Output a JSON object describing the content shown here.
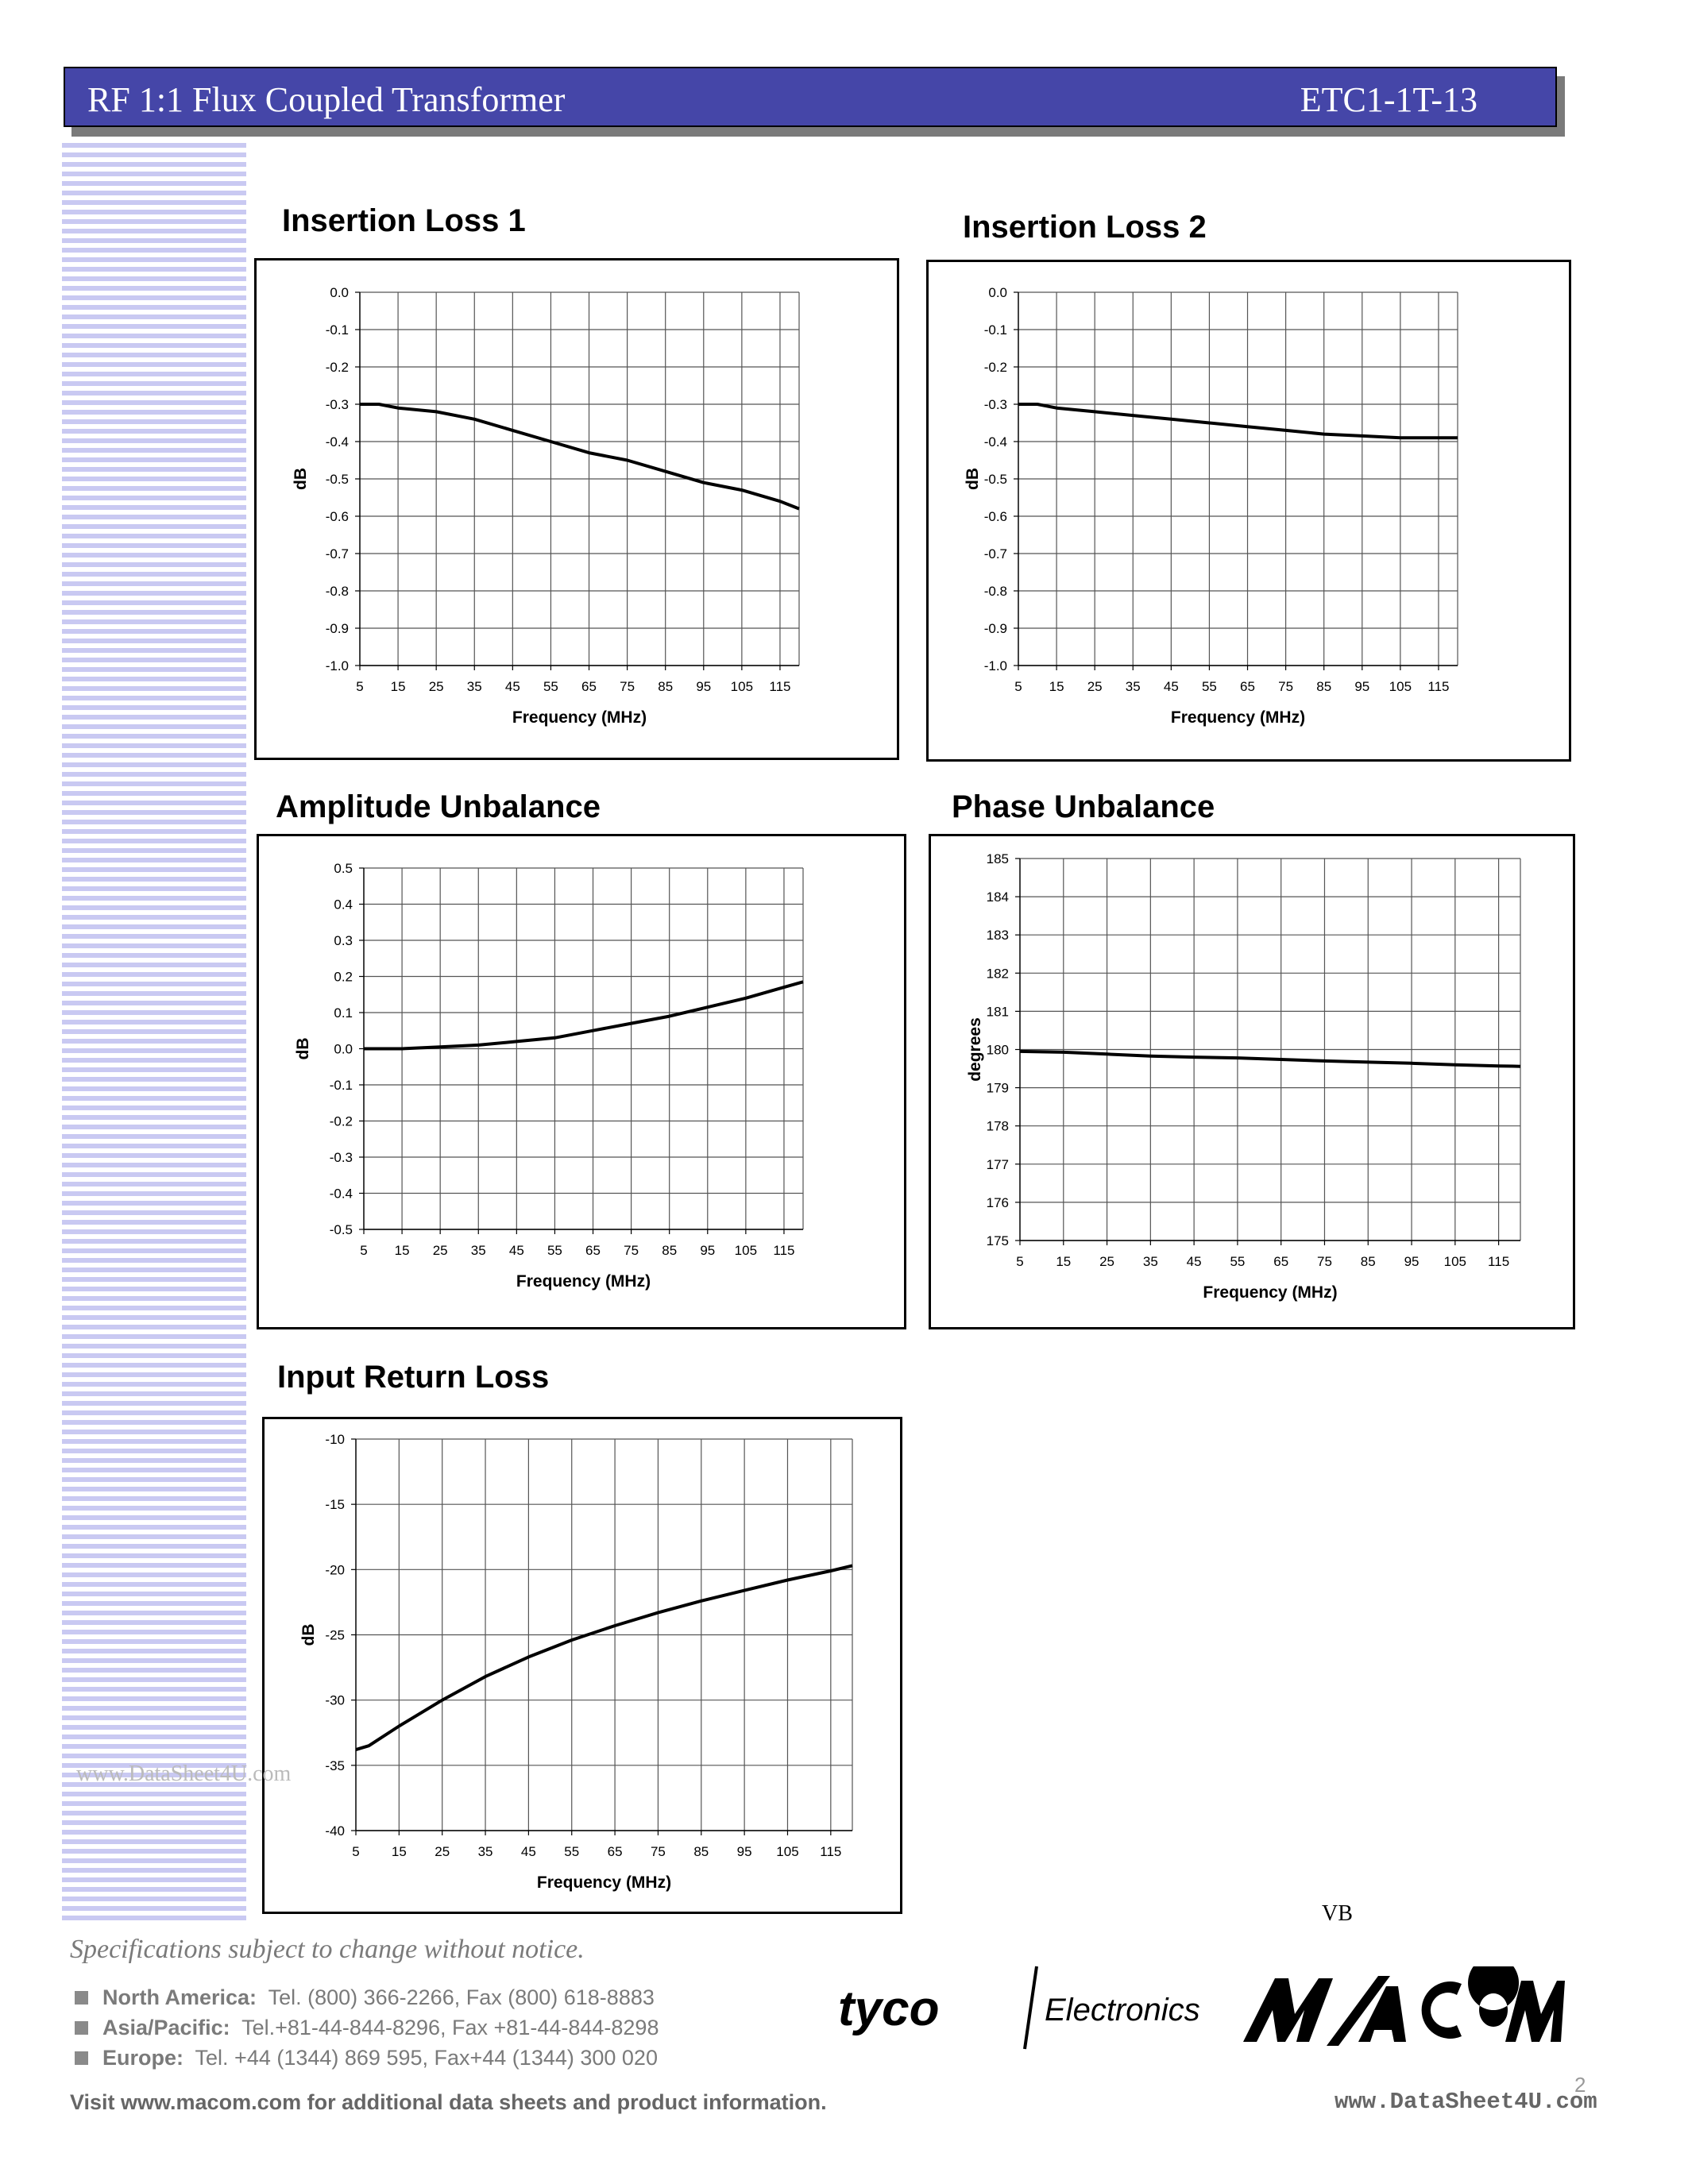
{
  "header": {
    "title": "RF 1:1 Flux Coupled Transformer",
    "part_number": "ETC1-1T-13"
  },
  "charts": [
    {
      "key": "il1",
      "title": "Insertion Loss 1"
    },
    {
      "key": "il2",
      "title": "Insertion Loss 2"
    },
    {
      "key": "amp",
      "title": "Amplitude Unbalance"
    },
    {
      "key": "phase",
      "title": "Phase Unbalance"
    },
    {
      "key": "rl",
      "title": "Input Return Loss"
    }
  ],
  "chart_data": [
    {
      "type": "line",
      "title": "Insertion Loss 1",
      "xlabel": "Frequency (MHz)",
      "ylabel": "dB",
      "xlim": [
        5,
        120
      ],
      "ylim": [
        -1.0,
        0.0
      ],
      "xticks": [
        "5",
        "15",
        "25",
        "35",
        "45",
        "55",
        "65",
        "75",
        "85",
        "95",
        "105",
        "115"
      ],
      "yticks": [
        "0.0",
        "-0.1",
        "-0.2",
        "-0.3",
        "-0.4",
        "-0.5",
        "-0.6",
        "-0.7",
        "-0.8",
        "-0.9",
        "-1.0"
      ],
      "grid": true,
      "series": [
        {
          "x": [
            5,
            10,
            15,
            25,
            35,
            45,
            55,
            65,
            75,
            85,
            95,
            105,
            115,
            120
          ],
          "y": [
            -0.3,
            -0.3,
            -0.31,
            -0.32,
            -0.34,
            -0.37,
            -0.4,
            -0.43,
            -0.45,
            -0.48,
            -0.51,
            -0.53,
            -0.56,
            -0.58
          ]
        }
      ]
    },
    {
      "type": "line",
      "title": "Insertion Loss 2",
      "xlabel": "Frequency (MHz)",
      "ylabel": "dB",
      "xlim": [
        5,
        120
      ],
      "ylim": [
        -1.0,
        0.0
      ],
      "xticks": [
        "5",
        "15",
        "25",
        "35",
        "45",
        "55",
        "65",
        "75",
        "85",
        "95",
        "105",
        "115"
      ],
      "yticks": [
        "0.0",
        "-0.1",
        "-0.2",
        "-0.3",
        "-0.4",
        "-0.5",
        "-0.6",
        "-0.7",
        "-0.8",
        "-0.9",
        "-1.0"
      ],
      "grid": true,
      "series": [
        {
          "x": [
            5,
            10,
            15,
            25,
            35,
            45,
            55,
            65,
            75,
            85,
            95,
            105,
            115,
            120
          ],
          "y": [
            -0.3,
            -0.3,
            -0.31,
            -0.32,
            -0.33,
            -0.34,
            -0.35,
            -0.36,
            -0.37,
            -0.38,
            -0.385,
            -0.39,
            -0.39,
            -0.39
          ]
        }
      ]
    },
    {
      "type": "line",
      "title": "Amplitude Unbalance",
      "xlabel": "Frequency (MHz)",
      "ylabel": "dB",
      "xlim": [
        5,
        120
      ],
      "ylim": [
        -0.5,
        0.5
      ],
      "xticks": [
        "5",
        "15",
        "25",
        "35",
        "45",
        "55",
        "65",
        "75",
        "85",
        "95",
        "105",
        "115"
      ],
      "yticks": [
        "0.5",
        "0.4",
        "0.3",
        "0.2",
        "0.1",
        "0.0",
        "-0.1",
        "-0.2",
        "-0.3",
        "-0.4",
        "-0.5"
      ],
      "grid": true,
      "series": [
        {
          "x": [
            5,
            15,
            25,
            35,
            45,
            55,
            65,
            75,
            85,
            95,
            105,
            115,
            120
          ],
          "y": [
            0.0,
            0.0,
            0.005,
            0.01,
            0.02,
            0.03,
            0.05,
            0.07,
            0.09,
            0.115,
            0.14,
            0.17,
            0.185
          ]
        }
      ]
    },
    {
      "type": "line",
      "title": "Phase Unbalance",
      "xlabel": "Frequency (MHz)",
      "ylabel": "degrees",
      "xlim": [
        5,
        120
      ],
      "ylim": [
        175,
        185
      ],
      "xticks": [
        "5",
        "15",
        "25",
        "35",
        "45",
        "55",
        "65",
        "75",
        "85",
        "95",
        "105",
        "115"
      ],
      "yticks": [
        "185",
        "184",
        "183",
        "182",
        "181",
        "180",
        "179",
        "178",
        "177",
        "176",
        "175"
      ],
      "grid": true,
      "series": [
        {
          "x": [
            5,
            15,
            25,
            35,
            45,
            55,
            65,
            75,
            85,
            95,
            105,
            115,
            120
          ],
          "y": [
            179.95,
            179.93,
            179.88,
            179.83,
            179.8,
            179.78,
            179.74,
            179.7,
            179.67,
            179.64,
            179.6,
            179.57,
            179.56
          ]
        }
      ]
    },
    {
      "type": "line",
      "title": "Input Return Loss",
      "xlabel": "Frequency (MHz)",
      "ylabel": "dB",
      "xlim": [
        5,
        120
      ],
      "ylim": [
        -40,
        -10
      ],
      "xticks": [
        "5",
        "15",
        "25",
        "35",
        "45",
        "55",
        "65",
        "75",
        "85",
        "95",
        "105",
        "115"
      ],
      "yticks": [
        "-10",
        "-15",
        "-20",
        "-25",
        "-30",
        "-35",
        "-40"
      ],
      "grid": true,
      "series": [
        {
          "x": [
            5,
            8,
            15,
            25,
            35,
            45,
            55,
            65,
            75,
            85,
            95,
            105,
            115,
            120
          ],
          "y": [
            -33.8,
            -33.5,
            -32.0,
            -30.0,
            -28.2,
            -26.7,
            -25.4,
            -24.3,
            -23.3,
            -22.4,
            -21.6,
            -20.8,
            -20.1,
            -19.7
          ]
        }
      ]
    }
  ],
  "footer": {
    "notice": "Specifications subject to change without notice.",
    "contacts": [
      {
        "region": "North America:",
        "details": "Tel. (800) 366-2266,  Fax (800) 618-8883"
      },
      {
        "region": "Asia/Pacific:",
        "details": "Tel.+81-44-844-8296,  Fax +81-44-844-8298"
      },
      {
        "region": "Europe:",
        "details": "Tel. +44 (1344) 869 595,  Fax+44 (1344) 300 020"
      }
    ],
    "visit": "Visit www.macom.com for additional data sheets and product information.",
    "watermark": "www.DataSheet4U.com",
    "datasheet_footer": "www.DataSheet4U.com",
    "page_number": "2",
    "rev": "VB",
    "logos": {
      "tyco": "tyco",
      "electronics": "Electronics",
      "macom": "M/A-COM"
    }
  }
}
